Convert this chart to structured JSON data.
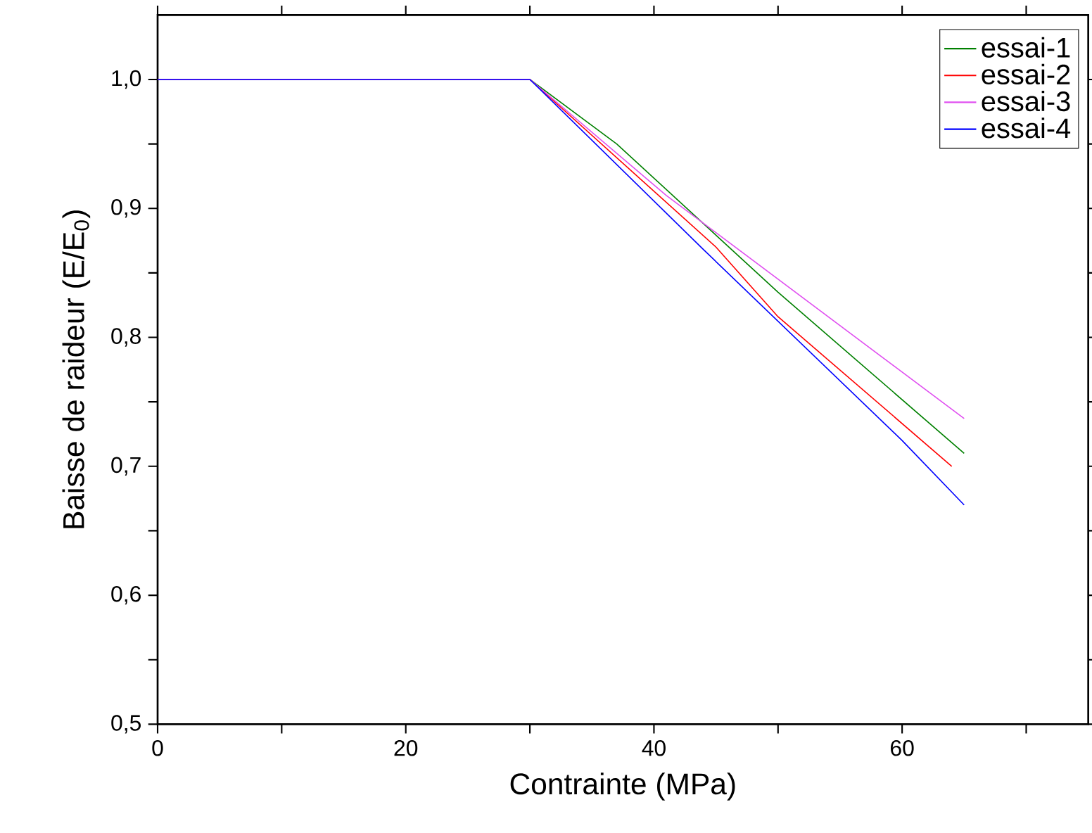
{
  "chart_data": {
    "type": "line",
    "xlabel": "Contrainte (MPa)",
    "ylabel": "Baisse de raideur (E/E$_{0}$)",
    "xlim": [
      0,
      75
    ],
    "ylim": [
      0.5,
      1.05
    ],
    "xticks": [
      0,
      {
        "value": 10,
        "label": null
      },
      20,
      {
        "value": 30,
        "label": null
      },
      40,
      {
        "value": 50,
        "label": null
      },
      60,
      {
        "value": 70,
        "label": null
      }
    ],
    "yticks": [
      {
        "value": 0.5,
        "label": "0,5"
      },
      {
        "value": 0.55,
        "label": null
      },
      {
        "value": 0.6,
        "label": "0,6"
      },
      {
        "value": 0.65,
        "label": null
      },
      {
        "value": 0.7,
        "label": "0,7"
      },
      {
        "value": 0.75,
        "label": null
      },
      {
        "value": 0.8,
        "label": "0,8"
      },
      {
        "value": 0.85,
        "label": null
      },
      {
        "value": 0.9,
        "label": "0,9"
      },
      {
        "value": 0.95,
        "label": null
      },
      {
        "value": 1.0,
        "label": "1,0"
      }
    ],
    "legend": "top right",
    "grid": false,
    "marker": "none",
    "line_style": "solid",
    "series": [
      {
        "name": "essai-1",
        "color": "#008000",
        "x": [
          0,
          30,
          37,
          50,
          65
        ],
        "values": [
          1.0,
          1.0,
          0.95,
          0.835,
          0.71
        ]
      },
      {
        "name": "essai-2",
        "color": "#ff0000",
        "x": [
          0,
          30,
          45,
          50,
          64
        ],
        "values": [
          1.0,
          1.0,
          0.87,
          0.816,
          0.7
        ]
      },
      {
        "name": "essai-3",
        "color": "#e050f0",
        "x": [
          0,
          30,
          41,
          65
        ],
        "values": [
          1.0,
          1.0,
          0.91,
          0.737
        ]
      },
      {
        "name": "essai-4",
        "color": "#0000ff",
        "x": [
          0,
          30,
          44,
          60,
          65
        ],
        "values": [
          1.0,
          1.0,
          0.868,
          0.72,
          0.67
        ]
      }
    ]
  }
}
